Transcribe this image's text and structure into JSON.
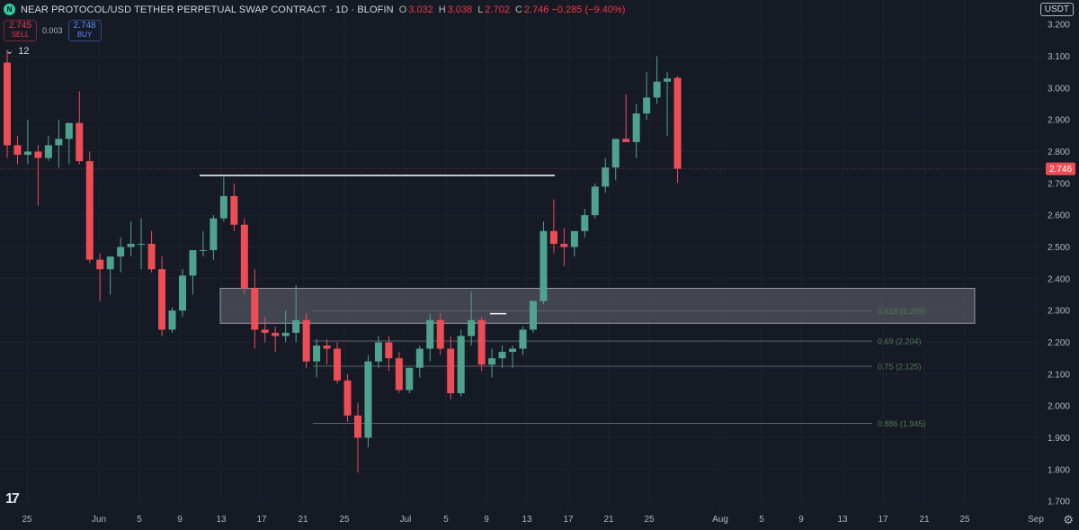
{
  "header": {
    "logo_letter": "N",
    "symbol_title": "NEAR PROTOCOL/USD TETHER PERPETUAL SWAP CONTRACT · 1D · BLOFIN",
    "ohlc": [
      {
        "label": "O",
        "value": "3.032"
      },
      {
        "label": "H",
        "value": "3.038"
      },
      {
        "label": "L",
        "value": "2.702"
      },
      {
        "label": "C",
        "value": "2.746 −0.285 (−9.40%)"
      }
    ]
  },
  "trade": {
    "sell_price": "2.745",
    "sell_label": "SELL",
    "spread": "0.003",
    "buy_price": "2.748",
    "buy_label": "BUY"
  },
  "indicators_toggle": {
    "count": "12"
  },
  "currency_label": "USDT",
  "colors": {
    "up": "#4fa38e",
    "down": "#ef4d56",
    "bg": "#161a25",
    "grid": "#1e2230",
    "zone": "#787b86",
    "fib_text": "#4f7a58"
  },
  "chart_data": {
    "type": "candlestick",
    "yaxis": {
      "ticks": [
        3.2,
        3.1,
        3.0,
        2.9,
        2.8,
        2.7,
        2.6,
        2.5,
        2.4,
        2.3,
        2.2,
        2.1,
        2.0,
        1.9,
        1.8,
        1.7
      ]
    },
    "xaxis": {
      "ticks": [
        "25",
        "Jun",
        "5",
        "9",
        "13",
        "17",
        "21",
        "25",
        "Jul",
        "5",
        "9",
        "13",
        "17",
        "21",
        "25",
        "Aug",
        "5",
        "9",
        "13",
        "17",
        "21",
        "25",
        "Sep"
      ]
    },
    "last_price": "2.746",
    "candles": [
      {
        "o": 3.08,
        "h": 3.12,
        "l": 2.78,
        "c": 2.82
      },
      {
        "o": 2.82,
        "h": 2.85,
        "l": 2.76,
        "c": 2.79
      },
      {
        "o": 2.79,
        "h": 2.9,
        "l": 2.76,
        "c": 2.8
      },
      {
        "o": 2.8,
        "h": 2.82,
        "l": 2.63,
        "c": 2.78
      },
      {
        "o": 2.78,
        "h": 2.85,
        "l": 2.77,
        "c": 2.82
      },
      {
        "o": 2.82,
        "h": 2.9,
        "l": 2.75,
        "c": 2.84
      },
      {
        "o": 2.84,
        "h": 2.89,
        "l": 2.76,
        "c": 2.89
      },
      {
        "o": 2.89,
        "h": 2.99,
        "l": 2.76,
        "c": 2.77
      },
      {
        "o": 2.77,
        "h": 2.8,
        "l": 2.45,
        "c": 2.46
      },
      {
        "o": 2.46,
        "h": 2.48,
        "l": 2.33,
        "c": 2.43
      },
      {
        "o": 2.43,
        "h": 2.47,
        "l": 2.35,
        "c": 2.47
      },
      {
        "o": 2.47,
        "h": 2.53,
        "l": 2.42,
        "c": 2.5
      },
      {
        "o": 2.5,
        "h": 2.58,
        "l": 2.47,
        "c": 2.51
      },
      {
        "o": 2.51,
        "h": 2.59,
        "l": 2.43,
        "c": 2.51
      },
      {
        "o": 2.51,
        "h": 2.55,
        "l": 2.42,
        "c": 2.43
      },
      {
        "o": 2.43,
        "h": 2.47,
        "l": 2.22,
        "c": 2.24
      },
      {
        "o": 2.24,
        "h": 2.31,
        "l": 2.23,
        "c": 2.3
      },
      {
        "o": 2.3,
        "h": 2.43,
        "l": 2.28,
        "c": 2.41
      },
      {
        "o": 2.41,
        "h": 2.49,
        "l": 2.35,
        "c": 2.49
      },
      {
        "o": 2.49,
        "h": 2.55,
        "l": 2.47,
        "c": 2.49
      },
      {
        "o": 2.49,
        "h": 2.6,
        "l": 2.46,
        "c": 2.59
      },
      {
        "o": 2.59,
        "h": 2.72,
        "l": 2.58,
        "c": 2.66
      },
      {
        "o": 2.66,
        "h": 2.7,
        "l": 2.55,
        "c": 2.57
      },
      {
        "o": 2.57,
        "h": 2.59,
        "l": 2.35,
        "c": 2.37
      },
      {
        "o": 2.37,
        "h": 2.43,
        "l": 2.18,
        "c": 2.24
      },
      {
        "o": 2.24,
        "h": 2.28,
        "l": 2.2,
        "c": 2.23
      },
      {
        "o": 2.23,
        "h": 2.25,
        "l": 2.17,
        "c": 2.22
      },
      {
        "o": 2.22,
        "h": 2.3,
        "l": 2.2,
        "c": 2.23
      },
      {
        "o": 2.23,
        "h": 2.38,
        "l": 2.2,
        "c": 2.27
      },
      {
        "o": 2.27,
        "h": 2.29,
        "l": 2.12,
        "c": 2.14
      },
      {
        "o": 2.14,
        "h": 2.21,
        "l": 2.09,
        "c": 2.19
      },
      {
        "o": 2.19,
        "h": 2.21,
        "l": 2.13,
        "c": 2.18
      },
      {
        "o": 2.18,
        "h": 2.2,
        "l": 2.07,
        "c": 2.08
      },
      {
        "o": 2.08,
        "h": 2.1,
        "l": 1.95,
        "c": 1.97
      },
      {
        "o": 1.97,
        "h": 2.01,
        "l": 1.79,
        "c": 1.9
      },
      {
        "o": 1.9,
        "h": 2.16,
        "l": 1.87,
        "c": 2.14
      },
      {
        "o": 2.14,
        "h": 2.22,
        "l": 2.12,
        "c": 2.2
      },
      {
        "o": 2.2,
        "h": 2.22,
        "l": 2.11,
        "c": 2.15
      },
      {
        "o": 2.15,
        "h": 2.17,
        "l": 2.04,
        "c": 2.05
      },
      {
        "o": 2.05,
        "h": 2.12,
        "l": 2.04,
        "c": 2.12
      },
      {
        "o": 2.12,
        "h": 2.19,
        "l": 2.09,
        "c": 2.18
      },
      {
        "o": 2.18,
        "h": 2.29,
        "l": 2.14,
        "c": 2.27
      },
      {
        "o": 2.27,
        "h": 2.29,
        "l": 2.16,
        "c": 2.18
      },
      {
        "o": 2.18,
        "h": 2.22,
        "l": 2.02,
        "c": 2.04
      },
      {
        "o": 2.04,
        "h": 2.24,
        "l": 2.03,
        "c": 2.22
      },
      {
        "o": 2.22,
        "h": 2.36,
        "l": 2.19,
        "c": 2.27
      },
      {
        "o": 2.27,
        "h": 2.28,
        "l": 2.11,
        "c": 2.13
      },
      {
        "o": 2.13,
        "h": 2.18,
        "l": 2.09,
        "c": 2.15
      },
      {
        "o": 2.15,
        "h": 2.19,
        "l": 2.12,
        "c": 2.17
      },
      {
        "o": 2.17,
        "h": 2.19,
        "l": 2.12,
        "c": 2.18
      },
      {
        "o": 2.18,
        "h": 2.25,
        "l": 2.16,
        "c": 2.24
      },
      {
        "o": 2.24,
        "h": 2.33,
        "l": 2.23,
        "c": 2.33
      },
      {
        "o": 2.33,
        "h": 2.58,
        "l": 2.32,
        "c": 2.55
      },
      {
        "o": 2.55,
        "h": 2.65,
        "l": 2.48,
        "c": 2.51
      },
      {
        "o": 2.51,
        "h": 2.56,
        "l": 2.44,
        "c": 2.5
      },
      {
        "o": 2.5,
        "h": 2.55,
        "l": 2.47,
        "c": 2.55
      },
      {
        "o": 2.55,
        "h": 2.62,
        "l": 2.53,
        "c": 2.6
      },
      {
        "o": 2.6,
        "h": 2.7,
        "l": 2.59,
        "c": 2.69
      },
      {
        "o": 2.69,
        "h": 2.78,
        "l": 2.67,
        "c": 2.75
      },
      {
        "o": 2.75,
        "h": 2.84,
        "l": 2.71,
        "c": 2.84
      },
      {
        "o": 2.84,
        "h": 2.98,
        "l": 2.83,
        "c": 2.83
      },
      {
        "o": 2.83,
        "h": 2.95,
        "l": 2.78,
        "c": 2.92
      },
      {
        "o": 2.92,
        "h": 3.05,
        "l": 2.9,
        "c": 2.97
      },
      {
        "o": 2.97,
        "h": 3.1,
        "l": 2.95,
        "c": 3.02
      },
      {
        "o": 3.02,
        "h": 3.05,
        "l": 2.85,
        "c": 3.03
      },
      {
        "o": 3.032,
        "h": 3.038,
        "l": 2.702,
        "c": 2.746
      }
    ],
    "annotations": {
      "resistance_line": {
        "price": 2.725
      },
      "zone": {
        "top": 2.37,
        "bottom": 2.26
      },
      "fib_levels": [
        {
          "price": 2.299,
          "label": "0.618 (2.299)"
        },
        {
          "price": 2.204,
          "label": "0.69 (2.204)"
        },
        {
          "price": 2.125,
          "label": "0.75 (2.125)"
        },
        {
          "price": 1.945,
          "label": "0.886 (1.945)"
        }
      ],
      "small_marker_price": 2.29
    }
  }
}
